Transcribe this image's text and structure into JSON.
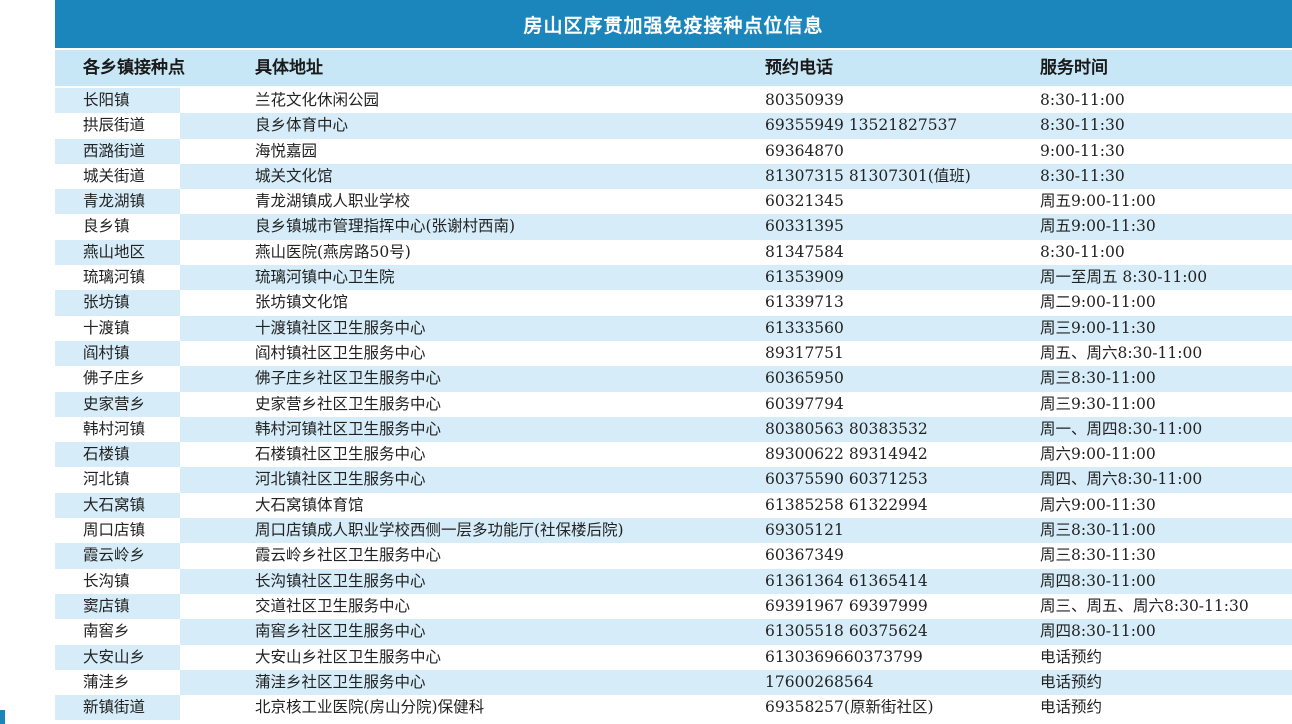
{
  "title": "房山区序贯加强免疫接种点位信息",
  "headers": {
    "site": "各乡镇接种点",
    "address": "具体地址",
    "phone": "预约电话",
    "hours": "服务时间"
  },
  "rows": [
    {
      "site": "长阳镇",
      "address": "兰花文化休闲公园",
      "phone": "80350939",
      "hours": "8:30-11:00"
    },
    {
      "site": "拱辰街道",
      "address": "良乡体育中心",
      "phone": "69355949  13521827537",
      "hours": "8:30-11:30"
    },
    {
      "site": "西潞街道",
      "address": "海悦嘉园",
      "phone": "69364870",
      "hours": "9:00-11:30"
    },
    {
      "site": "城关街道",
      "address": "城关文化馆",
      "phone": "81307315  81307301(值班)",
      "hours": "8:30-11:30"
    },
    {
      "site": "青龙湖镇",
      "address": "青龙湖镇成人职业学校",
      "phone": "60321345",
      "hours": "周五9:00-11:00"
    },
    {
      "site": "良乡镇",
      "address": "良乡镇城市管理指挥中心(张谢村西南)",
      "phone": "60331395",
      "hours": "周五9:00-11:30"
    },
    {
      "site": "燕山地区",
      "address": "燕山医院(燕房路50号)",
      "phone": "81347584",
      "hours": "8:30-11:00"
    },
    {
      "site": "琉璃河镇",
      "address": "琉璃河镇中心卫生院",
      "phone": "61353909",
      "hours": "周一至周五 8:30-11:00"
    },
    {
      "site": "张坊镇",
      "address": "张坊镇文化馆",
      "phone": "61339713",
      "hours": "周二9:00-11:00"
    },
    {
      "site": "十渡镇",
      "address": "十渡镇社区卫生服务中心",
      "phone": "61333560",
      "hours": "周三9:00-11:30"
    },
    {
      "site": "阎村镇",
      "address": "阎村镇社区卫生服务中心",
      "phone": "89317751",
      "hours": "周五、周六8:30-11:00"
    },
    {
      "site": "佛子庄乡",
      "address": "佛子庄乡社区卫生服务中心",
      "phone": "60365950",
      "hours": "周三8:30-11:00"
    },
    {
      "site": "史家营乡",
      "address": "史家营乡社区卫生服务中心",
      "phone": "60397794",
      "hours": "周三9:30-11:00"
    },
    {
      "site": "韩村河镇",
      "address": "韩村河镇社区卫生服务中心",
      "phone": "80380563  80383532",
      "hours": "周一、周四8:30-11:00"
    },
    {
      "site": "石楼镇",
      "address": "石楼镇社区卫生服务中心",
      "phone": "89300622  89314942",
      "hours": "周六9:00-11:00"
    },
    {
      "site": "河北镇",
      "address": "河北镇社区卫生服务中心",
      "phone": "60375590  60371253",
      "hours": "周四、周六8:30-11:00"
    },
    {
      "site": "大石窝镇",
      "address": "大石窝镇体育馆",
      "phone": "61385258  61322994",
      "hours": "周六9:00-11:30"
    },
    {
      "site": "周口店镇",
      "address": "周口店镇成人职业学校西侧一层多功能厅(社保楼后院)",
      "phone": "69305121",
      "hours": "周三8:30-11:00"
    },
    {
      "site": "霞云岭乡",
      "address": "霞云岭乡社区卫生服务中心",
      "phone": "60367349",
      "hours": "周三8:30-11:30"
    },
    {
      "site": "长沟镇",
      "address": "长沟镇社区卫生服务中心",
      "phone": "61361364  61365414",
      "hours": "周四8:30-11:00"
    },
    {
      "site": "窦店镇",
      "address": "交道社区卫生服务中心",
      "phone": "69391967  69397999",
      "hours": "周三、周五、周六8:30-11:30"
    },
    {
      "site": "南窖乡",
      "address": "南窖乡社区卫生服务中心",
      "phone": "61305518  60375624",
      "hours": "周四8:30-11:00"
    },
    {
      "site": "大安山乡",
      "address": "大安山乡社区卫生服务中心",
      "phone": "6130369660373799",
      "hours": "电话预约"
    },
    {
      "site": "蒲洼乡",
      "address": "蒲洼乡社区卫生服务中心",
      "phone": "17600268564",
      "hours": "电话预约"
    },
    {
      "site": "新镇街道",
      "address": "北京核工业医院(房山分院)保健科",
      "phone": "69358257(原新街社区)",
      "hours": "电话预约"
    }
  ],
  "colors": {
    "title_bg": "#1a86bb",
    "header_bg": "#c8e7f6",
    "row_shade": "#d6edf9"
  }
}
